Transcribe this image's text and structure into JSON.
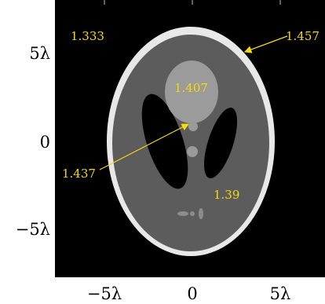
{
  "figure": {
    "x_tick_labels": [
      "−5λ",
      "0",
      "5λ"
    ],
    "y_tick_labels": [
      "5λ",
      "0",
      "−5λ"
    ],
    "x_tick_values": [
      -5,
      0,
      5
    ],
    "y_tick_values": [
      5,
      0,
      -5
    ],
    "background_color": "#000000",
    "annotation_color": "#f5d90a"
  },
  "annotations": {
    "background_index": "1.333",
    "skull_index": "1.457",
    "upper_region_index": "1.407",
    "small_feature_index": "1.437",
    "interior_index": "1.39"
  }
}
